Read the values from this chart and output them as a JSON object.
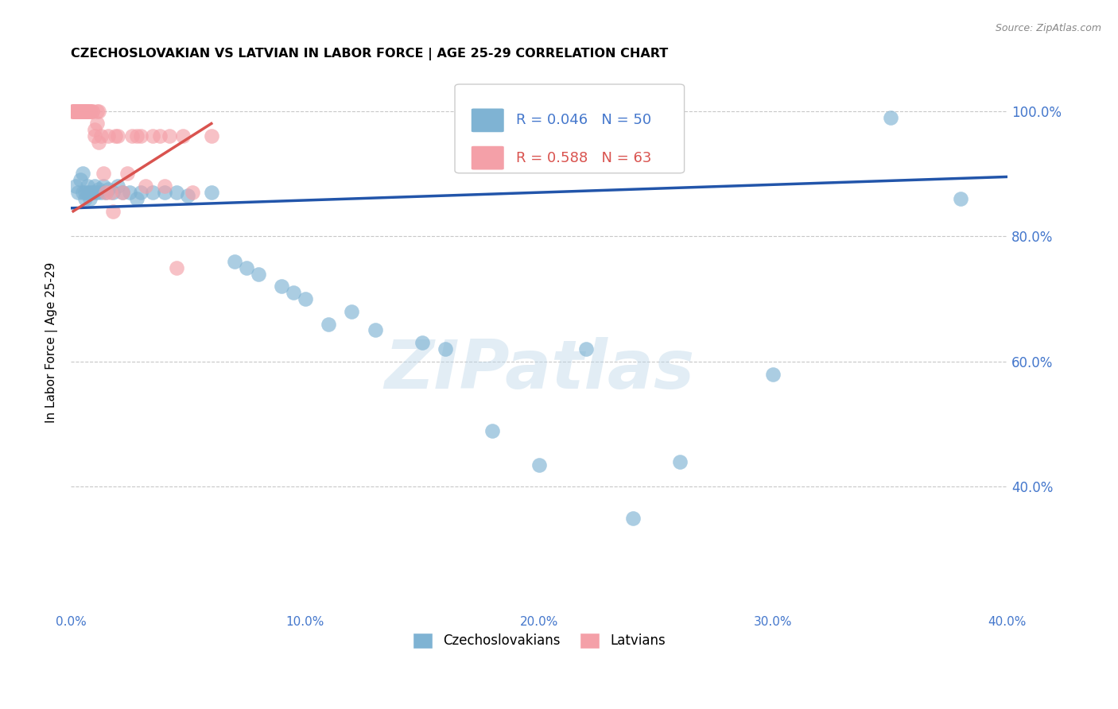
{
  "title": "CZECHOSLOVAKIAN VS LATVIAN IN LABOR FORCE | AGE 25-29 CORRELATION CHART",
  "source": "Source: ZipAtlas.com",
  "ylabel": "In Labor Force | Age 25-29",
  "xlim": [
    0.0,
    0.4
  ],
  "ylim": [
    0.2,
    1.06
  ],
  "xticks": [
    0.0,
    0.1,
    0.2,
    0.3,
    0.4
  ],
  "yticks": [
    0.4,
    0.6,
    0.8,
    1.0
  ],
  "ytick_labels": [
    "40.0%",
    "60.0%",
    "80.0%",
    "100.0%"
  ],
  "xtick_labels": [
    "0.0%",
    "10.0%",
    "20.0%",
    "30.0%",
    "40.0%"
  ],
  "blue_color": "#7FB3D3",
  "pink_color": "#F4A0A8",
  "blue_line_color": "#2255AA",
  "pink_line_color": "#D9534F",
  "axis_color": "#4477CC",
  "legend_blue_R": "R = 0.046",
  "legend_blue_N": "N = 50",
  "legend_pink_R": "R = 0.588",
  "legend_pink_N": "N = 63",
  "legend_label_blue": "Czechoslovakians",
  "legend_label_pink": "Latvians",
  "watermark": "ZIPatlas",
  "blue_scatter_x": [
    0.002,
    0.003,
    0.004,
    0.005,
    0.005,
    0.006,
    0.006,
    0.007,
    0.007,
    0.008,
    0.008,
    0.009,
    0.01,
    0.01,
    0.011,
    0.012,
    0.013,
    0.014,
    0.015,
    0.016,
    0.018,
    0.02,
    0.022,
    0.025,
    0.028,
    0.03,
    0.035,
    0.04,
    0.045,
    0.05,
    0.06,
    0.07,
    0.075,
    0.08,
    0.09,
    0.095,
    0.1,
    0.11,
    0.12,
    0.13,
    0.15,
    0.16,
    0.18,
    0.2,
    0.22,
    0.24,
    0.26,
    0.3,
    0.35,
    0.38
  ],
  "blue_scatter_y": [
    0.88,
    0.87,
    0.89,
    0.87,
    0.9,
    0.87,
    0.86,
    0.87,
    0.88,
    0.87,
    0.86,
    0.87,
    0.88,
    0.87,
    0.87,
    0.875,
    0.87,
    0.88,
    0.87,
    0.875,
    0.87,
    0.88,
    0.87,
    0.87,
    0.86,
    0.87,
    0.87,
    0.87,
    0.87,
    0.865,
    0.87,
    0.76,
    0.75,
    0.74,
    0.72,
    0.71,
    0.7,
    0.66,
    0.68,
    0.65,
    0.63,
    0.62,
    0.49,
    0.435,
    0.62,
    0.35,
    0.44,
    0.58,
    0.99,
    0.86
  ],
  "pink_scatter_x": [
    0.001,
    0.001,
    0.001,
    0.001,
    0.002,
    0.002,
    0.002,
    0.002,
    0.003,
    0.003,
    0.003,
    0.003,
    0.004,
    0.004,
    0.004,
    0.004,
    0.004,
    0.005,
    0.005,
    0.005,
    0.005,
    0.006,
    0.006,
    0.006,
    0.006,
    0.006,
    0.007,
    0.007,
    0.007,
    0.007,
    0.008,
    0.008,
    0.008,
    0.009,
    0.009,
    0.01,
    0.01,
    0.011,
    0.011,
    0.012,
    0.012,
    0.013,
    0.014,
    0.015,
    0.016,
    0.017,
    0.018,
    0.019,
    0.02,
    0.022,
    0.024,
    0.026,
    0.028,
    0.03,
    0.032,
    0.035,
    0.038,
    0.04,
    0.042,
    0.045,
    0.048,
    0.052,
    0.06
  ],
  "pink_scatter_y": [
    1.0,
    1.0,
    1.0,
    1.0,
    1.0,
    1.0,
    1.0,
    1.0,
    1.0,
    1.0,
    1.0,
    1.0,
    1.0,
    1.0,
    1.0,
    1.0,
    1.0,
    1.0,
    1.0,
    1.0,
    1.0,
    1.0,
    1.0,
    1.0,
    1.0,
    1.0,
    1.0,
    1.0,
    1.0,
    1.0,
    1.0,
    1.0,
    1.0,
    1.0,
    1.0,
    0.97,
    0.96,
    0.98,
    1.0,
    0.95,
    1.0,
    0.96,
    0.9,
    0.87,
    0.96,
    0.87,
    0.84,
    0.96,
    0.96,
    0.87,
    0.9,
    0.96,
    0.96,
    0.96,
    0.88,
    0.96,
    0.96,
    0.88,
    0.96,
    0.75,
    0.96,
    0.87,
    0.96
  ],
  "blue_trend_x": [
    0.0,
    0.4
  ],
  "blue_trend_y": [
    0.845,
    0.895
  ],
  "pink_trend_x": [
    0.001,
    0.06
  ],
  "pink_trend_y": [
    0.84,
    0.98
  ]
}
